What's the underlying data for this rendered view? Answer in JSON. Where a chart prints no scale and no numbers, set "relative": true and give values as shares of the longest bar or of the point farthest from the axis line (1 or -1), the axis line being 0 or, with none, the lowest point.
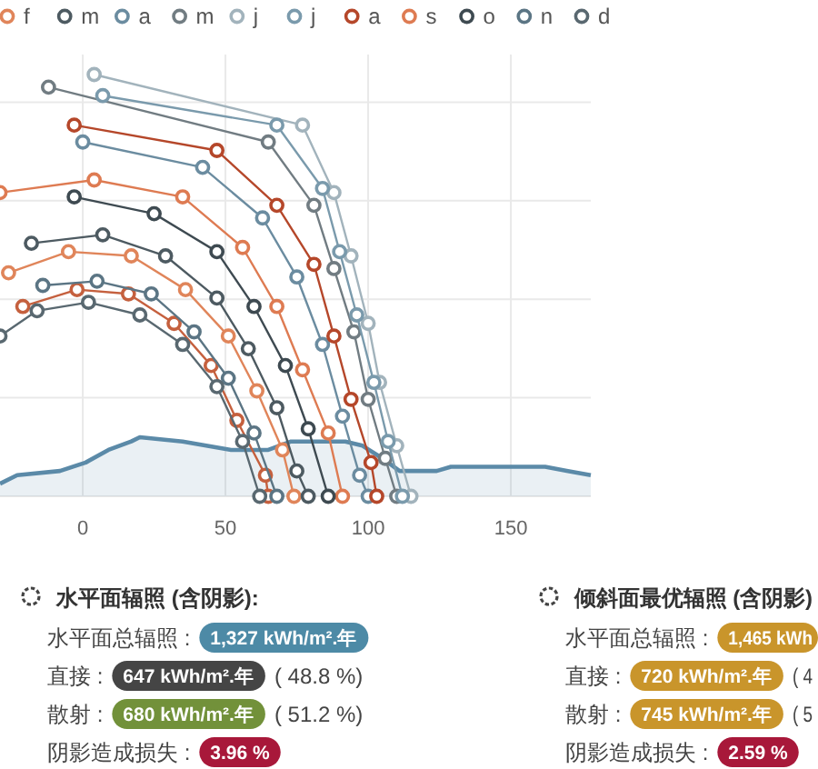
{
  "chart_data": [
    {
      "type": "line",
      "xlim": [
        -29,
        178
      ],
      "xticks": [
        0,
        50,
        100,
        150
      ],
      "relative": true,
      "grid": true,
      "legend": "top",
      "marker": "circle",
      "series": [
        {
          "type": "area",
          "marker": "none",
          "color": "#5b8aa8",
          "x": [
            -29,
            -23,
            -8,
            1,
            9,
            17,
            20,
            35,
            52,
            65,
            73,
            92,
            98,
            105,
            111,
            124,
            129,
            141,
            162,
            170,
            178
          ],
          "values": [
            0.03,
            0.05,
            0.06,
            0.08,
            0.11,
            0.13,
            0.14,
            0.13,
            0.11,
            0.11,
            0.13,
            0.13,
            0.12,
            0.09,
            0.06,
            0.06,
            0.07,
            0.07,
            0.07,
            0.06,
            0.05
          ]
        },
        {
          "color": "#c5603e",
          "x": [
            -21,
            -2,
            16,
            32,
            45,
            54,
            64,
            65
          ],
          "values": [
            0.45,
            0.49,
            0.48,
            0.41,
            0.31,
            0.18,
            0.05,
            0
          ]
        },
        {
          "name": "f",
          "color": "#e0855a",
          "x": [
            -26,
            -5,
            17,
            36,
            51,
            61,
            70,
            74
          ],
          "values": [
            0.53,
            0.58,
            0.57,
            0.49,
            0.38,
            0.25,
            0.11,
            0
          ]
        },
        {
          "name": "m",
          "color": "#4d5a61",
          "x": [
            -18,
            7,
            29,
            47,
            58,
            68,
            75,
            79
          ],
          "values": [
            0.6,
            0.62,
            0.57,
            0.47,
            0.35,
            0.21,
            0.06,
            0
          ]
        },
        {
          "name": "a",
          "color": "#6b8ca0",
          "x": [
            0,
            42,
            63,
            75,
            84,
            91,
            97,
            100
          ],
          "values": [
            0.84,
            0.78,
            0.66,
            0.52,
            0.36,
            0.19,
            0.05,
            0
          ]
        },
        {
          "name": "m",
          "color": "#717c82",
          "x": [
            -12,
            65,
            81,
            88,
            95,
            100,
            106,
            110
          ],
          "values": [
            0.97,
            0.84,
            0.69,
            0.54,
            0.39,
            0.23,
            0.09,
            0
          ]
        },
        {
          "name": "j",
          "color": "#a2b3bc",
          "x": [
            4,
            77,
            88,
            94,
            100,
            104,
            110,
            115
          ],
          "values": [
            1.0,
            0.88,
            0.72,
            0.57,
            0.41,
            0.27,
            0.12,
            0
          ]
        },
        {
          "name": "j",
          "color": "#7a9aac",
          "x": [
            7,
            68,
            84,
            90,
            96,
            102,
            107,
            112
          ],
          "values": [
            0.95,
            0.88,
            0.73,
            0.58,
            0.43,
            0.27,
            0.13,
            0
          ]
        },
        {
          "name": "a",
          "color": "#b5472a",
          "x": [
            -3,
            47,
            68,
            81,
            88,
            94,
            101,
            103
          ],
          "values": [
            0.88,
            0.82,
            0.69,
            0.55,
            0.38,
            0.23,
            0.08,
            0
          ]
        },
        {
          "name": "s",
          "color": "#de7b52",
          "x": [
            -29,
            4,
            35,
            56,
            68,
            77,
            86,
            91
          ],
          "values": [
            0.72,
            0.75,
            0.71,
            0.59,
            0.45,
            0.3,
            0.15,
            0
          ]
        },
        {
          "name": "o",
          "color": "#3e4a51",
          "x": [
            -3,
            25,
            47,
            60,
            71,
            79,
            86
          ],
          "values": [
            0.71,
            0.67,
            0.58,
            0.45,
            0.31,
            0.16,
            0
          ]
        },
        {
          "name": "n",
          "color": "#5b7584",
          "x": [
            -14,
            5,
            24,
            39,
            51,
            60,
            68
          ],
          "values": [
            0.5,
            0.51,
            0.48,
            0.39,
            0.28,
            0.15,
            0
          ]
        },
        {
          "name": "d",
          "color": "#596870",
          "x": [
            -29,
            -16,
            2,
            20,
            35,
            47,
            56,
            62
          ],
          "values": [
            0.38,
            0.44,
            0.46,
            0.43,
            0.36,
            0.26,
            0.13,
            0
          ]
        }
      ]
    },
    {
      "type": "other",
      "title": "水平面辐照 (含阴影):",
      "annotations": [
        "水平面总辐照 :",
        "1,327 kWh/m².年",
        "直接 :",
        "647 kWh/m².年",
        "( 48.8 %)",
        "散射 :",
        "680 kWh/m².年",
        "( 51.2 %)",
        "阴影造成损失 :",
        "3.96 %"
      ],
      "colors": [
        "#4d8aa6",
        "#454545",
        "#72913a",
        "#a8183a"
      ]
    },
    {
      "type": "other",
      "title": "倾斜面最优辐照 (含阴影)",
      "annotations": [
        "水平面总辐照 :",
        "1,465 kWh",
        "直接 :",
        "720 kWh/m².年",
        "( 4",
        "散射 :",
        "745 kWh/m².年",
        "( 5",
        "阴影造成损失 :",
        "2.59 %"
      ],
      "colors": [
        "#c9952b",
        "#c9952b",
        "#c9952b",
        "#a8183a"
      ]
    }
  ]
}
